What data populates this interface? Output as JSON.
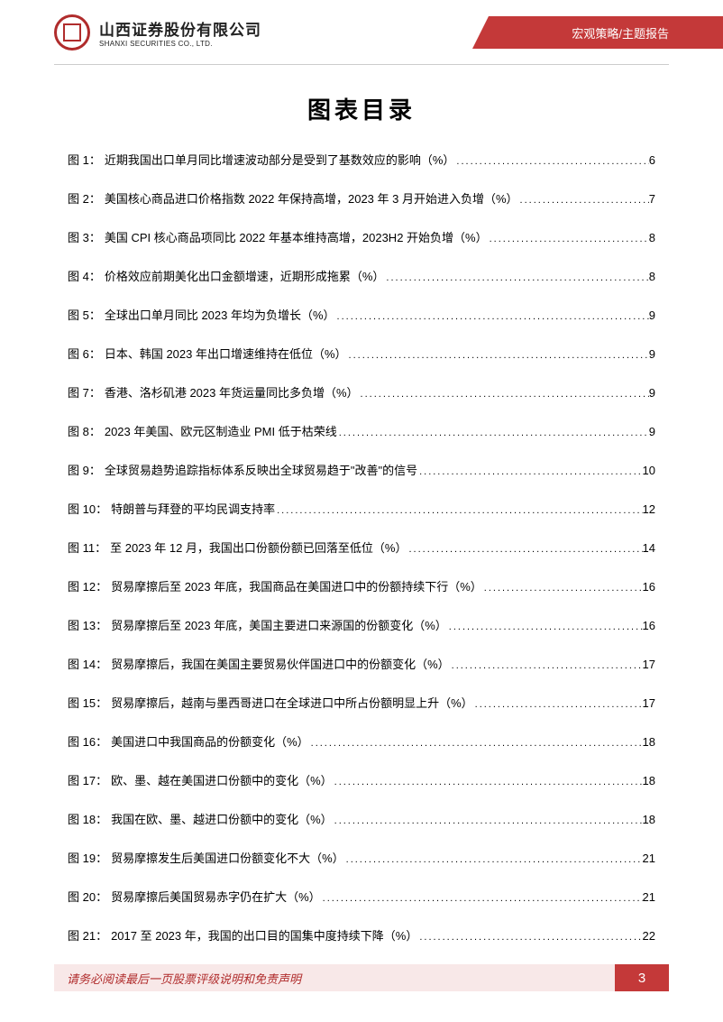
{
  "header": {
    "company_cn": "山西证券股份有限公司",
    "company_en": "SHANXI SECURITIES CO., LTD.",
    "category": "宏观策略/主题报告"
  },
  "title": "图表目录",
  "toc": [
    {
      "label": "图 1：",
      "desc": "近期我国出口单月同比增速波动部分是受到了基数效应的影响（%）",
      "page": "6"
    },
    {
      "label": "图 2：",
      "desc": "美国核心商品进口价格指数 2022 年保持高增，2023 年 3 月开始进入负增（%）",
      "page": "7"
    },
    {
      "label": "图 3：",
      "desc": "美国 CPI 核心商品项同比 2022 年基本维持高增，2023H2 开始负增（%）",
      "page": "8"
    },
    {
      "label": "图 4：",
      "desc": "价格效应前期美化出口金额增速，近期形成拖累（%）",
      "page": "8"
    },
    {
      "label": "图 5：",
      "desc": "全球出口单月同比 2023 年均为负增长（%）",
      "page": "9"
    },
    {
      "label": "图 6：",
      "desc": "日本、韩国 2023 年出口增速维持在低位（%）",
      "page": "9"
    },
    {
      "label": "图 7：",
      "desc": "香港、洛杉矶港 2023 年货运量同比多负增（%）",
      "page": "9"
    },
    {
      "label": "图 8：",
      "desc": "2023 年美国、欧元区制造业 PMI 低于枯荣线",
      "page": "9"
    },
    {
      "label": "图 9：",
      "desc": "全球贸易趋势追踪指标体系反映出全球贸易趋于\"改善\"的信号",
      "page": "10"
    },
    {
      "label": "图 10：",
      "desc": "特朗普与拜登的平均民调支持率",
      "page": "12"
    },
    {
      "label": "图 11：",
      "desc": "至 2023 年 12 月，我国出口份额份额已回落至低位（%）",
      "page": "14"
    },
    {
      "label": "图 12：",
      "desc": "贸易摩擦后至 2023 年底，我国商品在美国进口中的份额持续下行（%）",
      "page": "16"
    },
    {
      "label": "图 13：",
      "desc": "贸易摩擦后至 2023 年底，美国主要进口来源国的份额变化（%）",
      "page": "16"
    },
    {
      "label": "图 14：",
      "desc": "贸易摩擦后，我国在美国主要贸易伙伴国进口中的份额变化（%）",
      "page": "17"
    },
    {
      "label": "图 15：",
      "desc": "贸易摩擦后，越南与墨西哥进口在全球进口中所占份额明显上升（%）",
      "page": "17"
    },
    {
      "label": "图 16：",
      "desc": "美国进口中我国商品的份额变化（%）",
      "page": "18"
    },
    {
      "label": "图 17：",
      "desc": "欧、墨、越在美国进口份额中的变化（%）",
      "page": "18"
    },
    {
      "label": "图 18：",
      "desc": "我国在欧、墨、越进口份额中的变化（%）",
      "page": "18"
    },
    {
      "label": "图 19：",
      "desc": "贸易摩擦发生后美国进口份额变化不大（%）",
      "page": "21"
    },
    {
      "label": "图 20：",
      "desc": "贸易摩擦后美国贸易赤字仍在扩大（%）",
      "page": "21"
    },
    {
      "label": "图 21：",
      "desc": "2017 至 2023 年，我国的出口目的国集中度持续下降（%）",
      "page": "22"
    }
  ],
  "footer": {
    "disclaimer": "请务必阅读最后一页股票评级说明和免责声明",
    "page_number": "3"
  },
  "colors": {
    "brand_red": "#b02c2c",
    "header_red": "#c43939",
    "footer_bg": "#f8e8e8"
  }
}
